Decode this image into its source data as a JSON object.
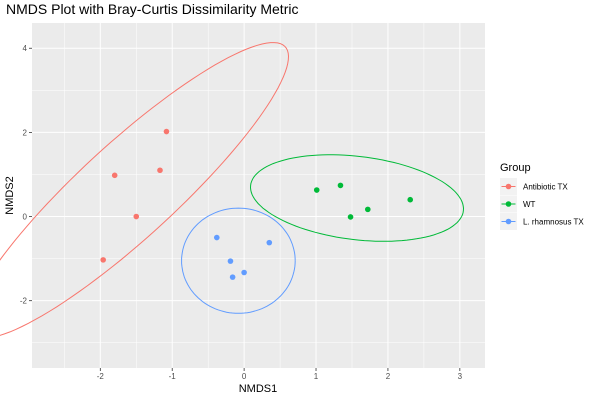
{
  "chart_data": {
    "type": "scatter",
    "title": "NMDS Plot with Bray-Curtis Dissimilarity Metric",
    "xlabel": "NMDS1",
    "ylabel": "NMDS2",
    "xlim": [
      -2.95,
      3.35
    ],
    "ylim": [
      -3.6,
      4.6
    ],
    "x_ticks": [
      -2,
      -1,
      0,
      1,
      2,
      3
    ],
    "y_ticks": [
      -2,
      0,
      2,
      4
    ],
    "x_tick_labels": [
      "-2",
      "-1",
      "0",
      "1",
      "2",
      "3"
    ],
    "y_tick_labels": [
      "-2",
      "0",
      "2",
      "4"
    ],
    "grid": true,
    "legend": {
      "title": "Group",
      "placement": "right"
    },
    "series": [
      {
        "name": "Antibiotic TX",
        "color": "#F8766D",
        "points": [
          {
            "x": -1.08,
            "y": 2.02
          },
          {
            "x": -1.8,
            "y": 0.98
          },
          {
            "x": -1.17,
            "y": 1.1
          },
          {
            "x": -1.5,
            "y": 0.0
          },
          {
            "x": -1.96,
            "y": -1.03
          }
        ],
        "ellipse": {
          "cx": -1.61,
          "cy": 0.62,
          "rx": 4.08,
          "ry": 0.82,
          "angle_deg": 58.8
        }
      },
      {
        "name": "WT",
        "color": "#00BA38",
        "points": [
          {
            "x": 1.01,
            "y": 0.63
          },
          {
            "x": 1.34,
            "y": 0.74
          },
          {
            "x": 1.72,
            "y": 0.17
          },
          {
            "x": 2.31,
            "y": 0.4
          },
          {
            "x": 1.48,
            "y": -0.01
          }
        ],
        "ellipse": {
          "cx": 1.57,
          "cy": 0.44,
          "rx": 1.52,
          "ry": 0.97,
          "angle_deg": -17
        }
      },
      {
        "name": "L. rhamnosus TX",
        "color": "#619CFF",
        "points": [
          {
            "x": -0.38,
            "y": -0.5
          },
          {
            "x": 0.35,
            "y": -0.62
          },
          {
            "x": -0.19,
            "y": -1.06
          },
          {
            "x": 0.0,
            "y": -1.33
          },
          {
            "x": -0.16,
            "y": -1.44
          }
        ],
        "ellipse": {
          "cx": -0.08,
          "cy": -1.05,
          "rx": 0.79,
          "ry": 1.25,
          "angle_deg": 0
        }
      }
    ]
  }
}
